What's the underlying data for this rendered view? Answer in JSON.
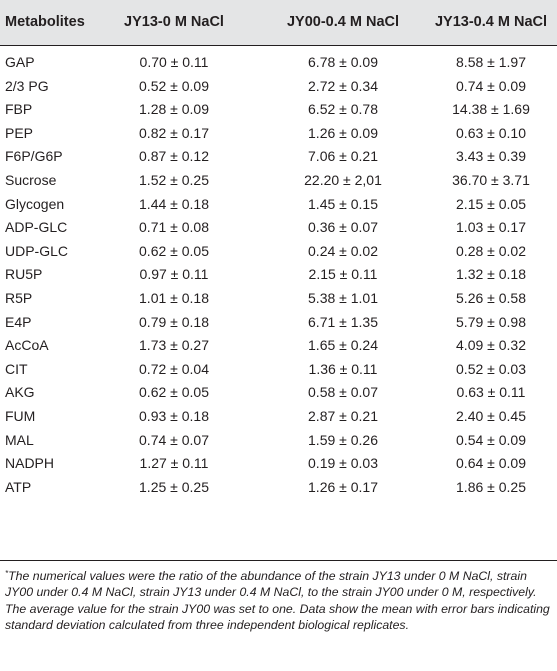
{
  "headers": [
    "Metabolites",
    "JY13-0 M NaCl",
    "JY00-0.4 M NaCl",
    "JY13-0.4 M NaCl"
  ],
  "rows": [
    [
      "GAP",
      "0.70 ± 0.11",
      "6.78 ± 0.09",
      "8.58 ± 1.97"
    ],
    [
      "2/3 PG",
      "0.52 ± 0.09",
      "2.72 ± 0.34",
      "0.74 ± 0.09"
    ],
    [
      "FBP",
      "1.28 ± 0.09",
      "6.52 ± 0.78",
      "14.38 ± 1.69"
    ],
    [
      "PEP",
      "0.82 ± 0.17",
      "1.26 ± 0.09",
      "0.63 ± 0.10"
    ],
    [
      "F6P/G6P",
      "0.87 ± 0.12",
      "7.06 ± 0.21",
      "3.43 ± 0.39"
    ],
    [
      "Sucrose",
      "1.52 ± 0.25",
      "22.20 ± 2,01",
      "36.70 ± 3.71"
    ],
    [
      "Glycogen",
      "1.44 ± 0.18",
      "1.45 ± 0.15",
      "2.15 ± 0.05"
    ],
    [
      "ADP-GLC",
      "0.71 ± 0.08",
      "0.36 ± 0.07",
      "1.03 ± 0.17"
    ],
    [
      "UDP-GLC",
      "0.62 ± 0.05",
      "0.24 ± 0.02",
      "0.28 ± 0.02"
    ],
    [
      "RU5P",
      "0.97 ± 0.11",
      "2.15 ± 0.11",
      "1.32 ± 0.18"
    ],
    [
      "R5P",
      "1.01 ± 0.18",
      "5.38 ± 1.01",
      "5.26 ± 0.58"
    ],
    [
      "E4P",
      "0.79 ± 0.18",
      "6.71 ± 1.35",
      "5.79 ± 0.98"
    ],
    [
      "AcCoA",
      "1.73 ± 0.27",
      "1.65 ± 0.24",
      "4.09 ± 0.32"
    ],
    [
      "CIT",
      "0.72 ± 0.04",
      "1.36 ± 0.11",
      "0.52 ± 0.03"
    ],
    [
      "AKG",
      "0.62 ± 0.05",
      "0.58 ± 0.07",
      "0.63 ± 0.11"
    ],
    [
      "FUM",
      "0.93 ± 0.18",
      "2.87 ± 0.21",
      "2.40 ± 0.45"
    ],
    [
      "MAL",
      "0.74 ± 0.07",
      "1.59 ± 0.26",
      "0.54 ± 0.09"
    ],
    [
      "NADPH",
      "1.27 ± 0.11",
      "0.19 ± 0.03",
      "0.64 ± 0.09"
    ],
    [
      "ATP",
      "1.25 ± 0.25",
      "1.26 ± 0.17",
      "1.86 ± 0.25"
    ]
  ],
  "footnote": {
    "marker": "*",
    "text": "The numerical values were the ratio of the abundance of the strain JY13 under 0 M NaCl, strain JY00 under 0.4 M NaCl, strain JY13 under 0.4 M NaCl, to the strain JY00 under 0 M, respectively. The average value for the strain JY00 was set to one. Data show the mean with error bars indicating standard deviation calculated from three independent biological replicates."
  }
}
